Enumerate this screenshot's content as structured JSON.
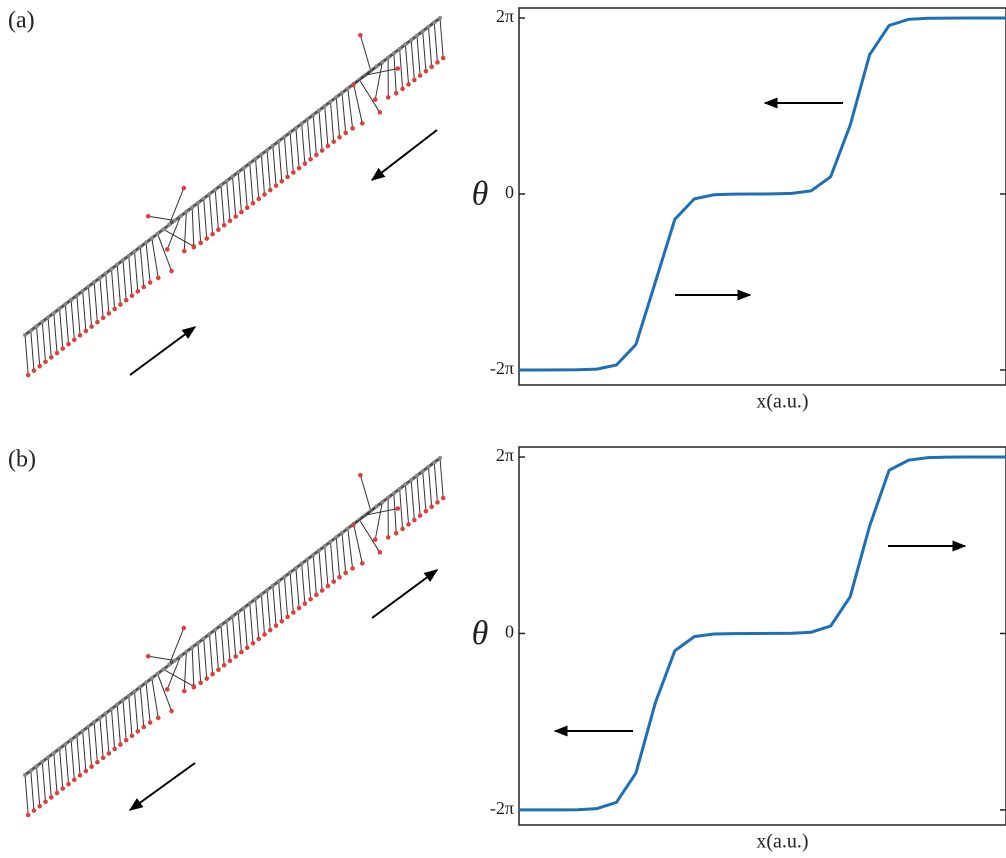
{
  "chart_data": [
    {
      "type": "line",
      "panel_label": "(a)",
      "y_label": "θ",
      "x_label": "x(a.u.)",
      "x": [
        0,
        4,
        8,
        12,
        16,
        20,
        24,
        28,
        32,
        36,
        40,
        44,
        48,
        52,
        56,
        60,
        64,
        68,
        72,
        76,
        80,
        84,
        88,
        92,
        96,
        100
      ],
      "series": [
        {
          "color": "#1f6fb5",
          "values": [
            -6.283,
            -6.283,
            -6.282,
            -6.278,
            -6.253,
            -6.107,
            -5.375,
            -3.142,
            -0.908,
            -0.176,
            -0.03,
            -0.005,
            0.0,
            0.003,
            0.019,
            0.113,
            0.616,
            2.46,
            4.973,
            6.016,
            6.236,
            6.275,
            6.281,
            6.283,
            6.283,
            6.283
          ]
        }
      ],
      "xlim": [
        0,
        100
      ],
      "ylim": [
        -6.82,
        6.64
      ],
      "yticks": [
        {
          "value": -6.283,
          "label": "-2π"
        },
        0,
        {
          "value": 6.283,
          "label": "2π"
        }
      ]
    },
    {
      "type": "line",
      "panel_label": "(b)",
      "y_label": "θ",
      "x_label": "x(a.u.)",
      "x": [
        0,
        4,
        8,
        12,
        16,
        20,
        24,
        28,
        32,
        36,
        40,
        44,
        48,
        52,
        56,
        60,
        64,
        68,
        72,
        76,
        80,
        84,
        88,
        92,
        96,
        100
      ],
      "series": [
        {
          "color": "#1f6fb5",
          "values": [
            -6.283,
            -6.283,
            -6.281,
            -6.275,
            -6.236,
            -6.016,
            -4.973,
            -2.46,
            -0.616,
            -0.113,
            -0.019,
            -0.003,
            0.0,
            0.001,
            0.008,
            0.047,
            0.267,
            1.31,
            3.824,
            5.809,
            6.17,
            6.264,
            6.28,
            6.283,
            6.283,
            6.283
          ]
        }
      ],
      "xlim": [
        0,
        100
      ],
      "ylim": [
        -6.82,
        6.64
      ],
      "yticks": [
        {
          "value": -6.283,
          "label": "-2π"
        },
        0,
        {
          "value": 6.283,
          "label": "2π"
        }
      ]
    }
  ]
}
